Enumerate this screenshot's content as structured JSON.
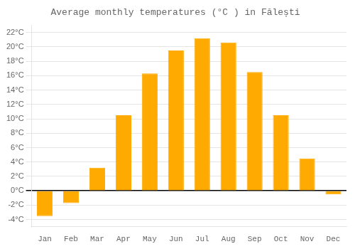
{
  "chart_data": {
    "type": "bar",
    "title": "Average monthly temperatures (°C ) in Fălești",
    "categories": [
      "Jan",
      "Feb",
      "Mar",
      "Apr",
      "May",
      "Jun",
      "Jul",
      "Aug",
      "Sep",
      "Oct",
      "Nov",
      "Dec"
    ],
    "values": [
      -3.5,
      -1.7,
      3.2,
      10.5,
      16.3,
      19.5,
      21.2,
      20.6,
      16.5,
      10.5,
      4.5,
      -0.5
    ],
    "color": "#FFAA00",
    "ylim": [
      -5,
      23
    ],
    "yticks": [
      {
        "value": -4,
        "label": "-4°C"
      },
      {
        "value": -2,
        "label": "-2°C"
      },
      {
        "value": 0,
        "label": "0°C"
      },
      {
        "value": 2,
        "label": "2°C"
      },
      {
        "value": 4,
        "label": "4°C"
      },
      {
        "value": 6,
        "label": "6°C"
      },
      {
        "value": 8,
        "label": "8°C"
      },
      {
        "value": 10,
        "label": "10°C"
      },
      {
        "value": 12,
        "label": "12°C"
      },
      {
        "value": 14,
        "label": "14°C"
      },
      {
        "value": 16,
        "label": "16°C"
      },
      {
        "value": 18,
        "label": "18°C"
      },
      {
        "value": 20,
        "label": "20°C"
      },
      {
        "value": 22,
        "label": "22°C"
      }
    ],
    "grid": true
  }
}
